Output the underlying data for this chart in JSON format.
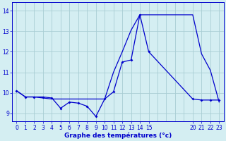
{
  "title": "Graphe des températures (°c)",
  "bg_color": "#d4eef2",
  "line_color": "#0000cc",
  "grid_color": "#a8cdd4",
  "xlim": [
    -0.5,
    23.5
  ],
  "ylim": [
    8.6,
    14.4
  ],
  "x_tick_positions": [
    0,
    1,
    2,
    3,
    4,
    5,
    6,
    7,
    8,
    9,
    10,
    11,
    12,
    13,
    14,
    15,
    20,
    21,
    22,
    23
  ],
  "x_tick_labels": [
    "0",
    "1",
    "2",
    "3",
    "4",
    "5",
    "6",
    "7",
    "8",
    "9",
    "10",
    "11",
    "12",
    "13",
    "14",
    "15",
    "20",
    "21",
    "22",
    "23"
  ],
  "yticks": [
    9,
    10,
    11,
    12,
    13,
    14
  ],
  "line1_x": [
    0,
    1,
    2,
    3,
    4,
    5,
    6,
    7,
    8,
    9,
    10,
    11,
    12,
    13,
    14,
    15,
    20,
    21,
    22,
    23
  ],
  "line1_y": [
    10.1,
    9.8,
    9.8,
    9.8,
    9.75,
    9.25,
    9.55,
    9.5,
    9.35,
    8.85,
    9.7,
    10.05,
    11.5,
    11.6,
    13.8,
    12.0,
    9.7,
    9.65,
    9.65,
    9.65
  ],
  "line2_x": [
    0,
    1,
    2,
    3,
    4,
    5,
    6,
    7,
    8,
    9,
    10,
    11,
    12,
    13,
    14,
    15,
    20,
    21,
    22,
    23
  ],
  "line2_y": [
    10.1,
    9.8,
    9.8,
    9.75,
    9.7,
    9.7,
    9.7,
    9.7,
    9.7,
    9.7,
    9.7,
    11.0,
    12.0,
    13.05,
    13.8,
    13.8,
    13.8,
    11.9,
    11.1,
    9.55
  ],
  "tick_fontsize": 5.5,
  "label_fontsize": 6.5
}
